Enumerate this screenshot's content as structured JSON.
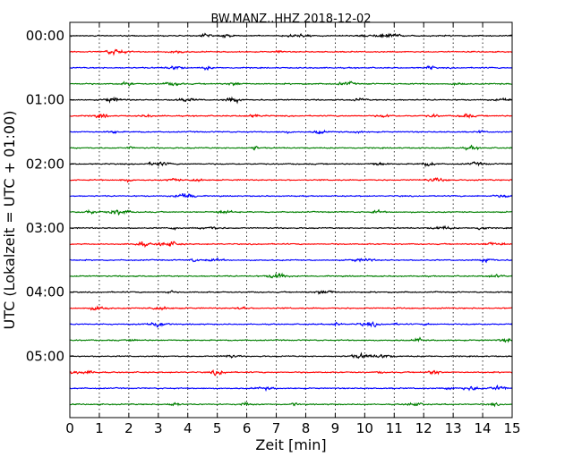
{
  "chart_data": {
    "type": "line",
    "title": "BW.MANZ..HHZ 2018-12-02",
    "xlabel": "Zeit  [min]",
    "ylabel": "UTC (Lokalzeit = UTC + 01:00)",
    "xlim": [
      0,
      15
    ],
    "x_ticks": [
      "0",
      "1",
      "2",
      "3",
      "4",
      "5",
      "6",
      "7",
      "8",
      "9",
      "10",
      "11",
      "12",
      "13",
      "14",
      "15"
    ],
    "y_ticks": [
      "00:00",
      "01:00",
      "02:00",
      "03:00",
      "04:00",
      "05:00"
    ],
    "traces_per_hour": 4,
    "trace_minutes": 15,
    "trace_count": 24,
    "trace_colors": [
      "#000000",
      "#ff0000",
      "#0000ff",
      "#007f00"
    ],
    "grid": "vertical dotted at each minute"
  }
}
